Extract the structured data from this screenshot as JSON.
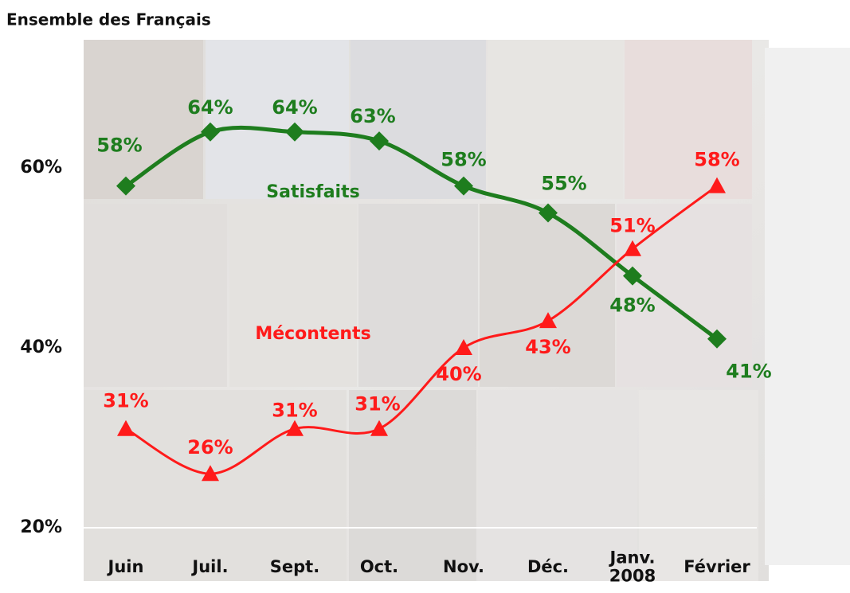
{
  "chart_data": {
    "type": "line",
    "title": "Ensemble des Français",
    "categories": [
      "Juin",
      "Juil.",
      "Sept.",
      "Oct.",
      "Nov.",
      "Déc.",
      "Janv.\n2008",
      "Février"
    ],
    "series": [
      {
        "name": "Satisfaits",
        "color": "#1e7d1e",
        "marker": "diamond",
        "values": [
          58,
          64,
          64,
          63,
          58,
          55,
          48,
          41
        ],
        "value_labels": [
          "58%",
          "64%",
          "64%",
          "63%",
          "58%",
          "55%",
          "48%",
          "41%"
        ]
      },
      {
        "name": "Mécontents",
        "color": "#ff1a1a",
        "marker": "triangle",
        "values": [
          31,
          26,
          31,
          31,
          40,
          43,
          51,
          58
        ],
        "value_labels": [
          "31%",
          "26%",
          "31%",
          "31%",
          "40%",
          "43%",
          "51%",
          "58%"
        ]
      }
    ],
    "ylim": [
      20,
      70
    ],
    "yticks": [
      {
        "value": 20,
        "label": "20%"
      },
      {
        "value": 40,
        "label": "40%"
      },
      {
        "value": 60,
        "label": "60%"
      }
    ]
  }
}
